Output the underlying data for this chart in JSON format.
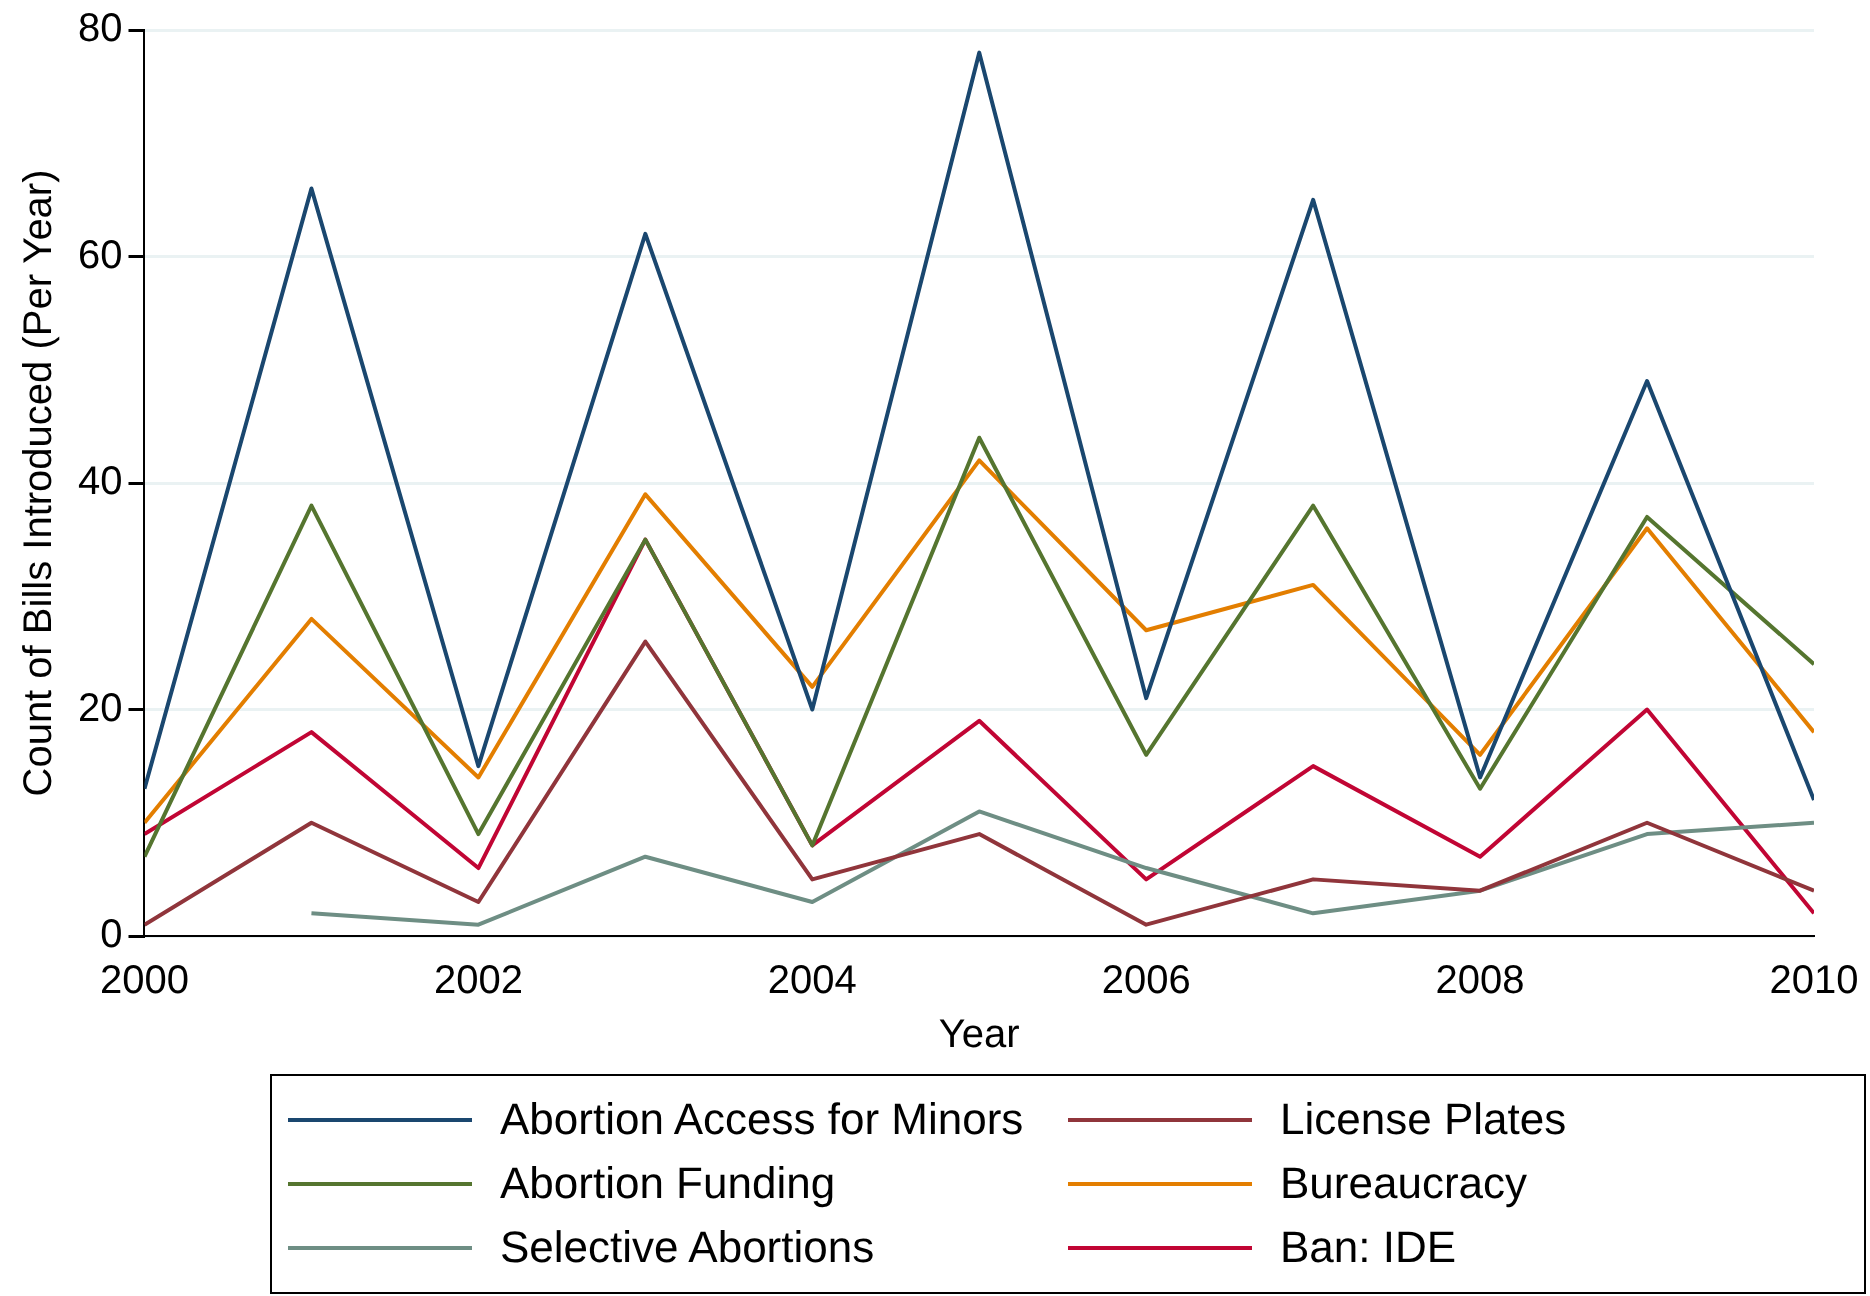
{
  "chart_data": {
    "type": "line",
    "xlabel": "Year",
    "ylabel": "Count of Bills Introduced (Per Year)",
    "x": [
      2000,
      2001,
      2002,
      2003,
      2004,
      2005,
      2006,
      2007,
      2008,
      2009,
      2010
    ],
    "xlim": [
      2000,
      2010
    ],
    "xticks": [
      2000,
      2002,
      2004,
      2006,
      2008,
      2010
    ],
    "ylim": [
      0,
      80
    ],
    "yticks": [
      0,
      20,
      40,
      60,
      80
    ],
    "grid": "y",
    "legend": "bottom",
    "marker": "none",
    "line_style": "solid",
    "series": [
      {
        "name": "Abortion Access for Minors",
        "color": "#1a476f",
        "values": [
          13,
          66,
          15,
          62,
          20,
          78,
          21,
          65,
          14,
          49,
          12
        ]
      },
      {
        "name": "License Plates",
        "color": "#90353b",
        "values": [
          1,
          10,
          3,
          26,
          5,
          9,
          1,
          5,
          4,
          10,
          4
        ]
      },
      {
        "name": "Abortion Funding",
        "color": "#55752f",
        "values": [
          7,
          38,
          9,
          35,
          8,
          44,
          16,
          38,
          13,
          37,
          24
        ]
      },
      {
        "name": "Bureaucracy",
        "color": "#e37e00",
        "values": [
          10,
          28,
          14,
          39,
          22,
          42,
          27,
          31,
          16,
          36,
          18
        ]
      },
      {
        "name": "Selective Abortions",
        "color": "#6e8e84",
        "values": [
          null,
          2,
          1,
          7,
          3,
          11,
          6,
          2,
          4,
          9,
          10
        ]
      },
      {
        "name": "Ban: IDE",
        "color": "#c10534",
        "values": [
          9,
          18,
          6,
          35,
          8,
          19,
          5,
          15,
          7,
          20,
          2
        ]
      }
    ]
  }
}
